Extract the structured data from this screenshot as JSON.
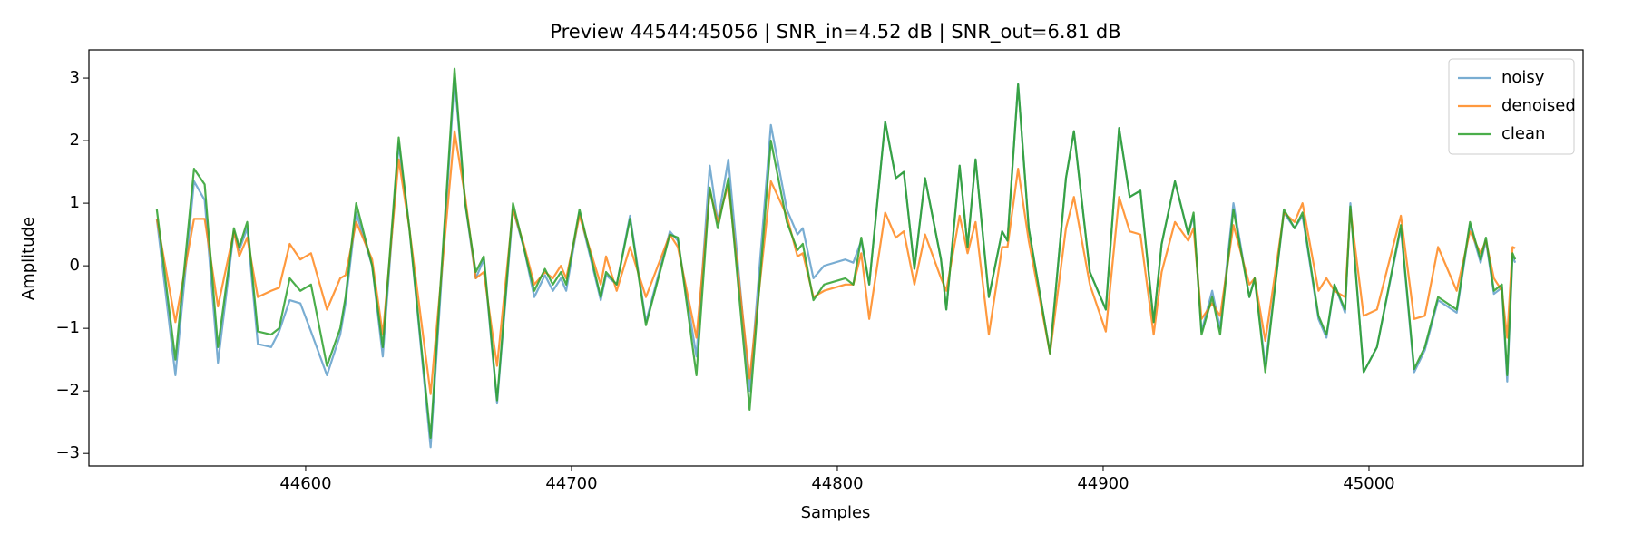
{
  "chart_data": {
    "type": "line",
    "title": "Preview 44544:45056 | SNR_in=4.52 dB | SNR_out=6.81 dB",
    "xlabel": "Samples",
    "ylabel": "Amplitude",
    "x": [
      44544,
      44551,
      44558,
      44562,
      44567,
      44573,
      44575,
      44578,
      44582,
      44587,
      44590,
      44594,
      44598,
      44602,
      44608,
      44613,
      44615,
      44619,
      44625,
      44629,
      44635,
      44639,
      44647,
      44656,
      44660,
      44664,
      44667,
      44672,
      44678,
      44682,
      44686,
      44690,
      44693,
      44696,
      44698,
      44703,
      44711,
      44713,
      44717,
      44722,
      44728,
      44737,
      44740,
      44747,
      44752,
      44755,
      44759,
      44767,
      44775,
      44781,
      44785,
      44787,
      44791,
      44795,
      44803,
      44806,
      44809,
      44812,
      44818,
      44822,
      44825,
      44829,
      44833,
      44839,
      44841,
      44846,
      44849,
      44852,
      44857,
      44862,
      44864,
      44868,
      44872,
      44880,
      44886,
      44889,
      44895,
      44901,
      44906,
      44910,
      44914,
      44919,
      44922,
      44927,
      44932,
      44934,
      44937,
      44941,
      44944,
      44949,
      44955,
      44957,
      44961,
      44968,
      44972,
      44975,
      44981,
      44984,
      44987,
      44991,
      44993,
      44998,
      45003,
      45012,
      45017,
      45021,
      45026,
      45033,
      45038,
      45042,
      45044,
      45047,
      45050,
      45052,
      45054,
      45055
    ],
    "series": [
      {
        "name": "noisy",
        "color": "#1f77b4",
        "opacity": 0.6,
        "values": [
          0.75,
          -1.75,
          1.35,
          1.05,
          -1.55,
          0.55,
          0.25,
          0.6,
          -1.25,
          -1.3,
          -1.05,
          -0.55,
          -0.6,
          -1.05,
          -1.75,
          -1.1,
          -0.6,
          0.85,
          0,
          -1.45,
          1.95,
          0.6,
          -2.9,
          3.0,
          1.0,
          -0.2,
          0.1,
          -2.2,
          0.9,
          0.3,
          -0.5,
          -0.15,
          -0.4,
          -0.2,
          -0.4,
          0.85,
          -0.55,
          -0.15,
          -0.3,
          0.8,
          -0.9,
          0.55,
          0.4,
          -1.45,
          1.6,
          0.7,
          1.7,
          -2.0,
          2.25,
          0.9,
          0.5,
          0.6,
          -0.2,
          0,
          0.1,
          0.05,
          0.4,
          -0.3,
          2.3,
          1.4,
          1.5,
          -0.05,
          1.4,
          0.1,
          -0.7,
          1.6,
          0.3,
          1.7,
          -0.5,
          0.55,
          0.4,
          2.9,
          0.6,
          -1.4,
          1.4,
          2.15,
          -0.1,
          -0.7,
          2.2,
          1.1,
          1.2,
          -0.9,
          0.35,
          1.35,
          0.5,
          0.8,
          -1.05,
          -0.4,
          -1.0,
          1.0,
          -0.5,
          -0.2,
          -1.6,
          0.85,
          0.6,
          0.8,
          -0.85,
          -1.15,
          -0.3,
          -0.75,
          1.0,
          -1.7,
          -1.3,
          0.6,
          -1.7,
          -1.35,
          -0.55,
          -0.75,
          0.65,
          0.05,
          0.4,
          -0.45,
          -0.35,
          -1.85,
          0.15,
          0.05
        ]
      },
      {
        "name": "denoised",
        "color": "#ff7f0e",
        "opacity": 0.8,
        "values": [
          0.75,
          -0.9,
          0.75,
          0.75,
          -0.65,
          0.55,
          0.15,
          0.45,
          -0.5,
          -0.4,
          -0.35,
          0.35,
          0.1,
          0.2,
          -0.7,
          -0.2,
          -0.15,
          0.7,
          0.1,
          -1.1,
          1.7,
          0.6,
          -2.05,
          2.15,
          1.1,
          -0.2,
          -0.1,
          -1.6,
          0.9,
          0.35,
          -0.3,
          -0.1,
          -0.2,
          0,
          -0.2,
          0.8,
          -0.3,
          0.15,
          -0.4,
          0.3,
          -0.5,
          0.5,
          0.3,
          -1.15,
          1.2,
          0.7,
          1.3,
          -1.8,
          1.35,
          0.8,
          0.15,
          0.2,
          -0.5,
          -0.4,
          -0.3,
          -0.3,
          0.2,
          -0.85,
          0.85,
          0.45,
          0.55,
          -0.3,
          0.5,
          -0.2,
          -0.4,
          0.8,
          0.2,
          0.7,
          -1.1,
          0.3,
          0.3,
          1.55,
          0.4,
          -1.4,
          0.6,
          1.1,
          -0.3,
          -1.05,
          1.1,
          0.55,
          0.5,
          -1.1,
          -0.1,
          0.7,
          0.4,
          0.6,
          -0.85,
          -0.6,
          -0.8,
          0.65,
          -0.3,
          -0.2,
          -1.2,
          0.85,
          0.7,
          1.0,
          -0.4,
          -0.2,
          -0.4,
          -0.5,
          0.9,
          -0.8,
          -0.7,
          0.8,
          -0.85,
          -0.8,
          0.3,
          -0.4,
          0.55,
          0.2,
          0.4,
          -0.2,
          -0.4,
          -1.15,
          0.3,
          0.28
        ]
      },
      {
        "name": "clean",
        "color": "#2ca02c",
        "opacity": 0.85,
        "values": [
          0.9,
          -1.5,
          1.55,
          1.3,
          -1.3,
          0.6,
          0.3,
          0.7,
          -1.05,
          -1.1,
          -1.0,
          -0.2,
          -0.4,
          -0.3,
          -1.6,
          -1.0,
          -0.5,
          1.0,
          0,
          -1.3,
          2.05,
          0.6,
          -2.75,
          3.15,
          1.0,
          -0.1,
          0.15,
          -2.15,
          1.0,
          0.3,
          -0.4,
          -0.05,
          -0.3,
          -0.1,
          -0.3,
          0.9,
          -0.5,
          -0.1,
          -0.3,
          0.75,
          -0.95,
          0.5,
          0.45,
          -1.75,
          1.25,
          0.6,
          1.4,
          -2.3,
          2.0,
          0.7,
          0.25,
          0.35,
          -0.55,
          -0.3,
          -0.2,
          -0.3,
          0.45,
          -0.3,
          2.3,
          1.4,
          1.5,
          -0.05,
          1.4,
          0.1,
          -0.7,
          1.6,
          0.3,
          1.7,
          -0.5,
          0.55,
          0.4,
          2.9,
          0.6,
          -1.4,
          1.4,
          2.15,
          -0.1,
          -0.7,
          2.2,
          1.1,
          1.2,
          -0.9,
          0.35,
          1.35,
          0.5,
          0.85,
          -1.1,
          -0.5,
          -1.1,
          0.9,
          -0.5,
          -0.2,
          -1.7,
          0.9,
          0.6,
          0.85,
          -0.8,
          -1.1,
          -0.3,
          -0.7,
          0.95,
          -1.7,
          -1.3,
          0.65,
          -1.65,
          -1.3,
          -0.5,
          -0.7,
          0.7,
          0.1,
          0.45,
          -0.4,
          -0.3,
          -1.75,
          0.2,
          0.1
        ]
      }
    ],
    "xlim": [
      44518.45,
      45080.55
    ],
    "xticks": [
      44600,
      44700,
      44800,
      44900,
      45000
    ],
    "ylim": [
      -3.2,
      3.45
    ],
    "yticks": [
      {
        "value": -3,
        "label": "−3"
      },
      {
        "value": -2,
        "label": "−2"
      },
      {
        "value": -1,
        "label": "−1"
      },
      0,
      1,
      2,
      3
    ],
    "grid": false,
    "legend": "upper right"
  }
}
